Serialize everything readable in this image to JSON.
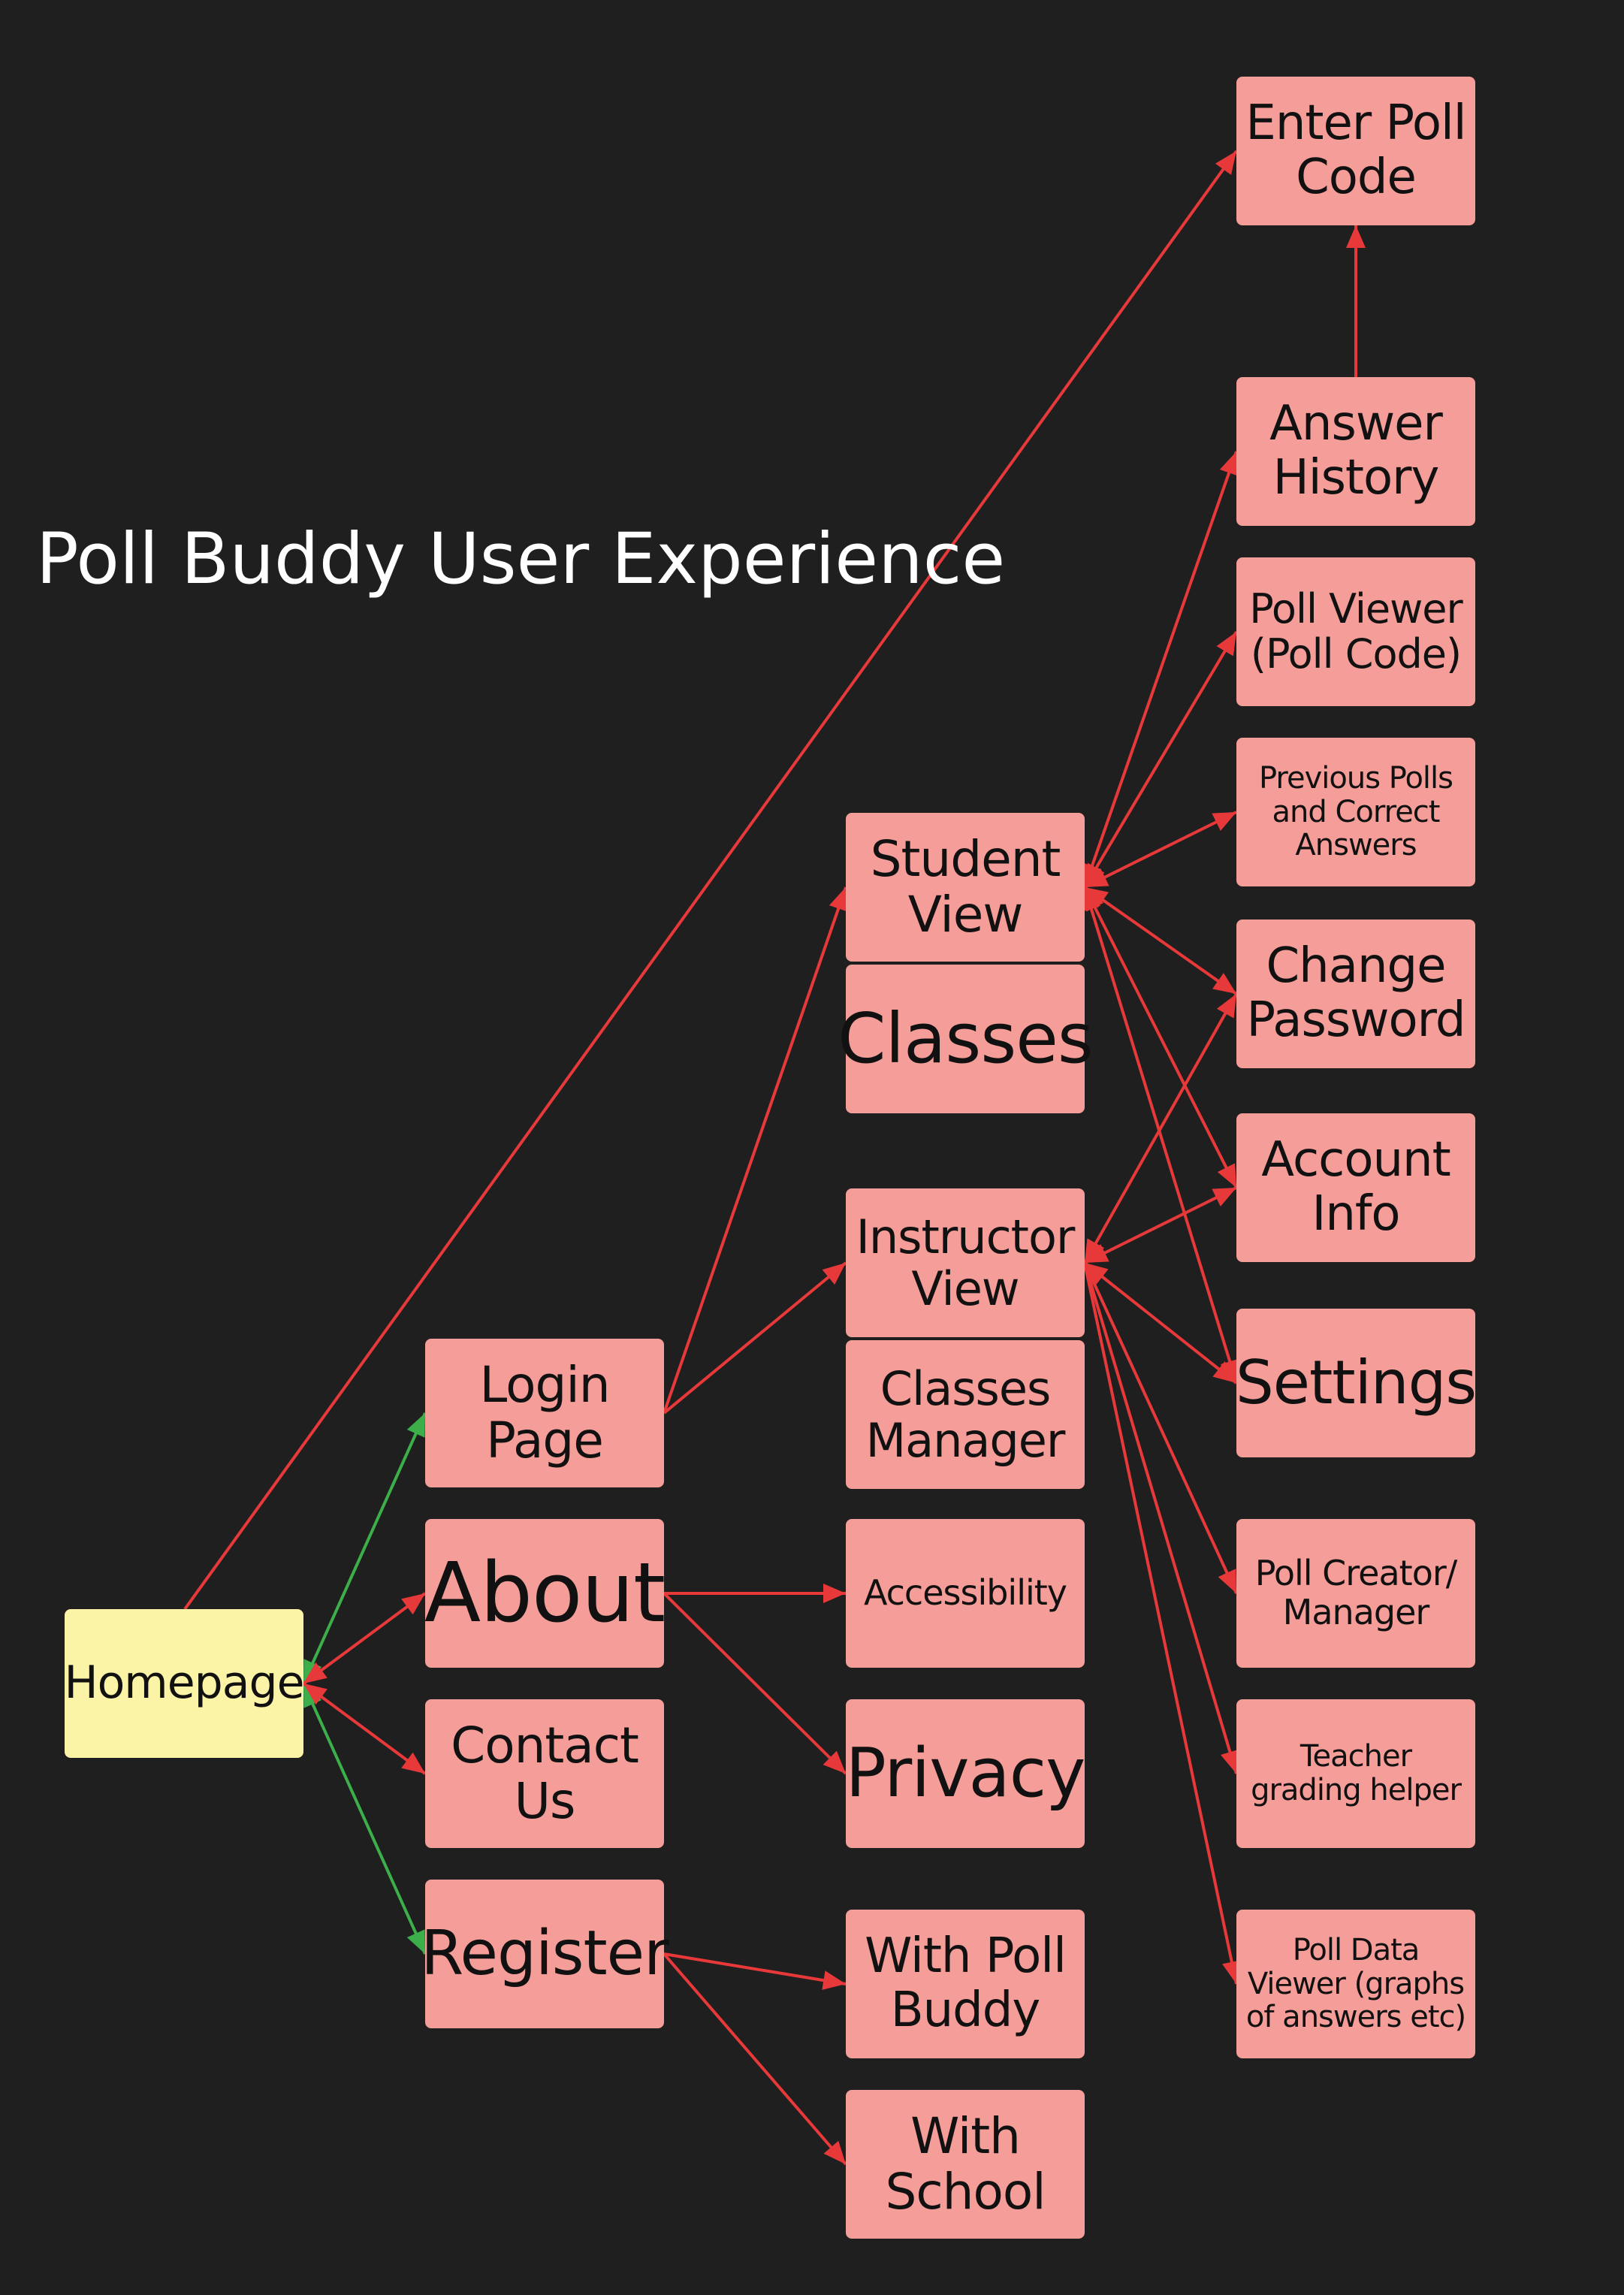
{
  "title": "Poll Buddy User Experience",
  "colors": {
    "background": "#1f1f1f",
    "node": "#f59d98",
    "home_node": "#fbf3a5",
    "edge_red": "#e8393a",
    "edge_green": "#3cae4a"
  },
  "nodes": {
    "homepage": "Homepage",
    "login": "Login\nPage",
    "about": "About",
    "contact": "Contact\nUs",
    "register": "Register",
    "student_view": "Student\nView",
    "classes": "Classes",
    "instructor_view": "Instructor\nView",
    "classes_manager": "Classes\nManager",
    "accessibility": "Accessibility",
    "privacy": "Privacy",
    "with_poll_buddy": "With Poll\nBuddy",
    "with_school": "With\nSchool",
    "enter_poll_code": "Enter Poll\nCode",
    "answer_history": "Answer\nHistory",
    "poll_viewer": "Poll Viewer\n(Poll Code)",
    "previous_polls": "Previous Polls\nand Correct\nAnswers",
    "change_password": "Change\nPassword",
    "account_info": "Account\nInfo",
    "settings": "Settings",
    "poll_creator": "Poll Creator/\nManager",
    "grading_helper": "Teacher\ngrading helper",
    "poll_data_viewer": "Poll Data\nViewer (graphs\nof answers etc)"
  },
  "edges": [
    {
      "from": "homepage",
      "to": "login",
      "color": "green",
      "arrow": "both"
    },
    {
      "from": "homepage",
      "to": "register",
      "color": "green",
      "arrow": "both"
    },
    {
      "from": "homepage",
      "to": "about",
      "color": "red",
      "arrow": "both"
    },
    {
      "from": "homepage",
      "to": "contact",
      "color": "red",
      "arrow": "both"
    },
    {
      "from": "homepage",
      "to": "enter_poll_code",
      "color": "red",
      "arrow": "end"
    },
    {
      "from": "login",
      "to": "student_view",
      "color": "red",
      "arrow": "end"
    },
    {
      "from": "login",
      "to": "instructor_view",
      "color": "red",
      "arrow": "end"
    },
    {
      "from": "about",
      "to": "accessibility",
      "color": "red",
      "arrow": "end"
    },
    {
      "from": "about",
      "to": "privacy",
      "color": "red",
      "arrow": "end"
    },
    {
      "from": "register",
      "to": "with_poll_buddy",
      "color": "red",
      "arrow": "end"
    },
    {
      "from": "register",
      "to": "with_school",
      "color": "red",
      "arrow": "end"
    },
    {
      "from": "answer_history",
      "to": "enter_poll_code",
      "color": "red",
      "arrow": "end"
    },
    {
      "from": "student_view",
      "to": "answer_history",
      "color": "red",
      "arrow": "both"
    },
    {
      "from": "student_view",
      "to": "poll_viewer",
      "color": "red",
      "arrow": "both"
    },
    {
      "from": "student_view",
      "to": "previous_polls",
      "color": "red",
      "arrow": "both"
    },
    {
      "from": "student_view",
      "to": "change_password",
      "color": "red",
      "arrow": "both"
    },
    {
      "from": "student_view",
      "to": "account_info",
      "color": "red",
      "arrow": "both"
    },
    {
      "from": "student_view",
      "to": "settings",
      "color": "red",
      "arrow": "both"
    },
    {
      "from": "instructor_view",
      "to": "change_password",
      "color": "red",
      "arrow": "both"
    },
    {
      "from": "instructor_view",
      "to": "account_info",
      "color": "red",
      "arrow": "both"
    },
    {
      "from": "instructor_view",
      "to": "settings",
      "color": "red",
      "arrow": "both"
    },
    {
      "from": "instructor_view",
      "to": "poll_creator",
      "color": "red",
      "arrow": "end"
    },
    {
      "from": "instructor_view",
      "to": "grading_helper",
      "color": "red",
      "arrow": "end"
    },
    {
      "from": "instructor_view",
      "to": "poll_data_viewer",
      "color": "red",
      "arrow": "end"
    }
  ]
}
